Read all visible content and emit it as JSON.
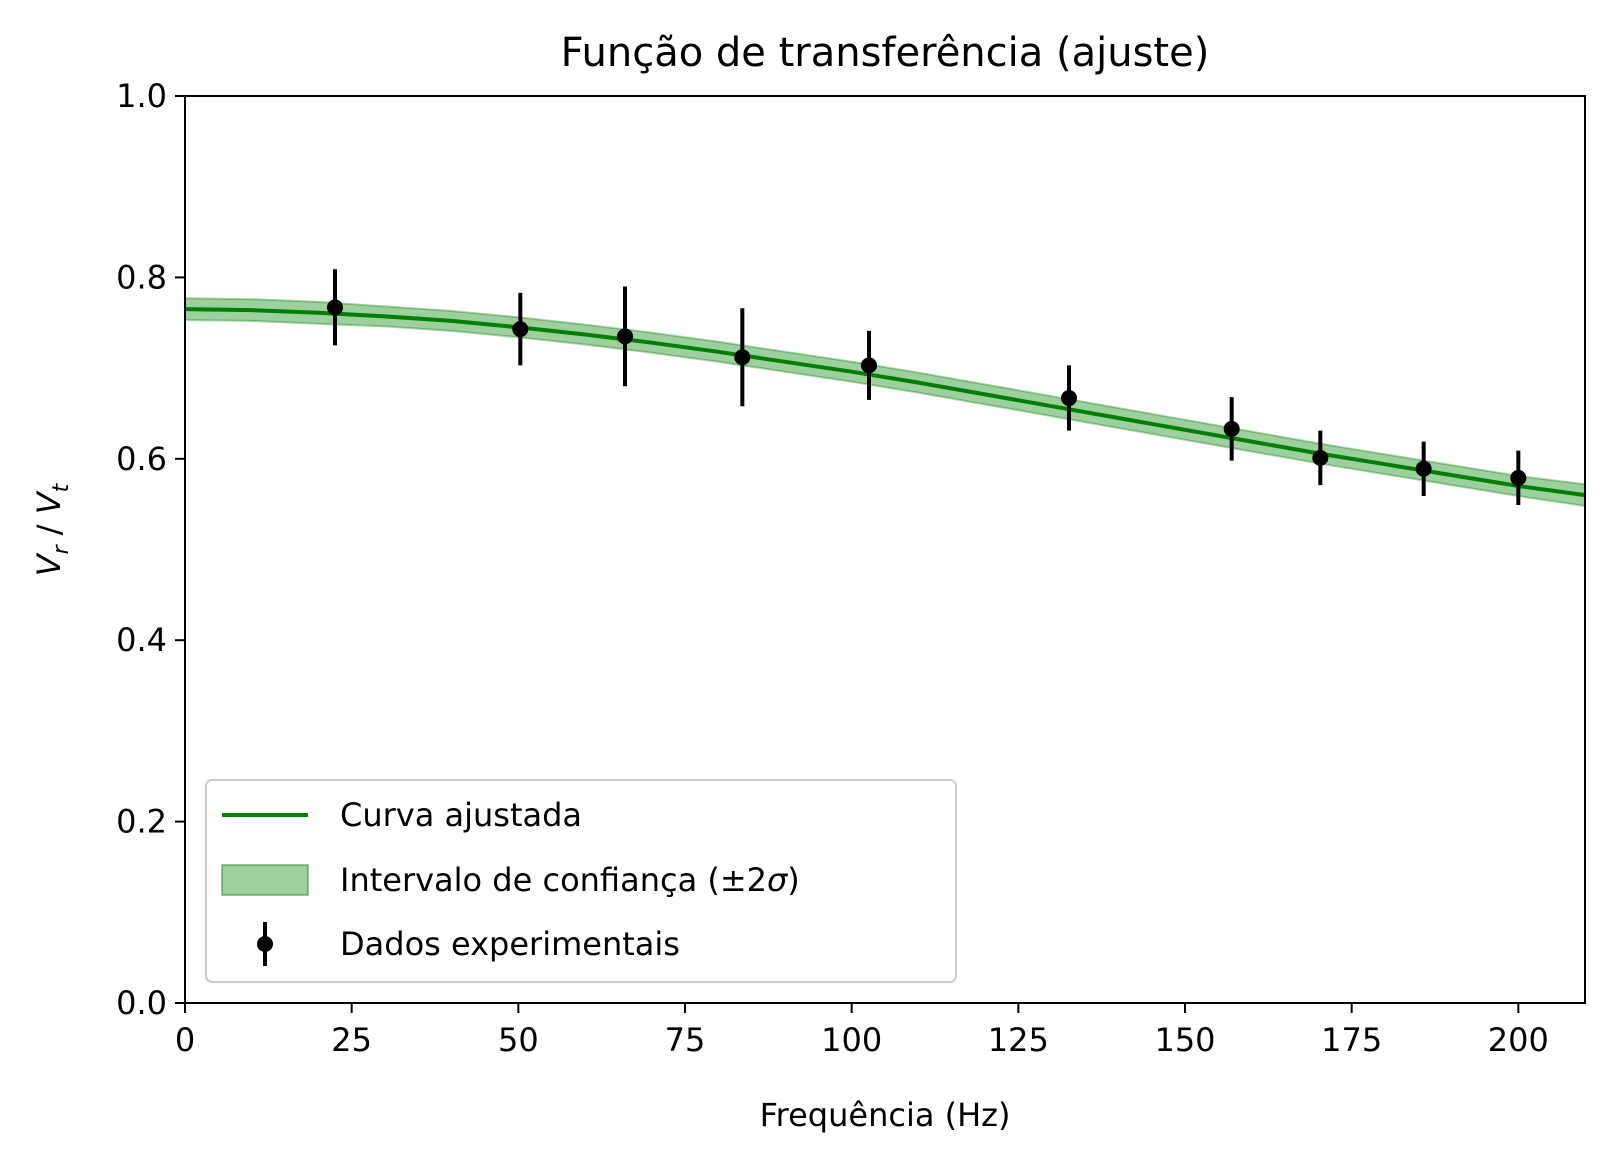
{
  "chart_data": {
    "type": "line",
    "title": "Função de transferência (ajuste)",
    "xlabel": "Frequência (Hz)",
    "ylabel": {
      "base1": "V",
      "sub1": "r",
      "sep": " / ",
      "base2": "V",
      "sub2": "t"
    },
    "xlim": [
      0,
      210
    ],
    "ylim": [
      0.0,
      1.0
    ],
    "x_ticks": [
      0,
      25,
      50,
      75,
      100,
      125,
      150,
      175,
      200
    ],
    "x_tick_labels": [
      "0",
      "25",
      "50",
      "75",
      "100",
      "125",
      "150",
      "175",
      "200"
    ],
    "y_ticks": [
      0.0,
      0.2,
      0.4,
      0.6,
      0.8,
      1.0
    ],
    "y_tick_labels": [
      "0.0",
      "0.2",
      "0.4",
      "0.6",
      "0.8",
      "1.0"
    ],
    "grid": false,
    "legend_position": "lower-left",
    "colors": {
      "fit": "#008000",
      "band": "#008000",
      "data": "#000000"
    },
    "fit_curve": {
      "name": "Curva ajustada",
      "x": [
        0,
        10,
        20,
        30,
        40,
        50,
        60,
        70,
        80,
        90,
        100,
        110,
        120,
        130,
        140,
        150,
        160,
        170,
        180,
        190,
        200,
        210
      ],
      "y": [
        0.765,
        0.764,
        0.761,
        0.757,
        0.752,
        0.745,
        0.737,
        0.728,
        0.718,
        0.707,
        0.696,
        0.684,
        0.671,
        0.658,
        0.645,
        0.632,
        0.619,
        0.606,
        0.594,
        0.582,
        0.57,
        0.56
      ]
    },
    "confidence_band": {
      "name": "Intervalo de confiança (±2σ)",
      "x": [
        0,
        10,
        20,
        30,
        40,
        50,
        60,
        70,
        80,
        90,
        100,
        110,
        120,
        130,
        140,
        150,
        160,
        170,
        180,
        190,
        200,
        210
      ],
      "lower": [
        0.753,
        0.752,
        0.749,
        0.746,
        0.741,
        0.734,
        0.726,
        0.717,
        0.707,
        0.696,
        0.685,
        0.673,
        0.66,
        0.647,
        0.634,
        0.621,
        0.608,
        0.595,
        0.583,
        0.571,
        0.559,
        0.548
      ],
      "upper": [
        0.777,
        0.776,
        0.773,
        0.768,
        0.763,
        0.756,
        0.748,
        0.739,
        0.729,
        0.718,
        0.707,
        0.695,
        0.682,
        0.669,
        0.656,
        0.643,
        0.63,
        0.617,
        0.605,
        0.593,
        0.581,
        0.572
      ]
    },
    "data_series": {
      "name": "Dados experimentais",
      "x": [
        22.5,
        50.3,
        66.0,
        83.6,
        102.6,
        132.6,
        157.0,
        170.3,
        185.8,
        200.0
      ],
      "y": [
        0.767,
        0.743,
        0.735,
        0.712,
        0.703,
        0.667,
        0.633,
        0.601,
        0.589,
        0.579
      ],
      "yerr": [
        0.042,
        0.04,
        0.055,
        0.054,
        0.038,
        0.036,
        0.035,
        0.03,
        0.03,
        0.03
      ]
    },
    "legend": {
      "fit_label": "Curva ajustada",
      "band_label": "Intervalo de confiança (±2",
      "band_sigma": "σ",
      "band_close": ")",
      "data_label": "Dados experimentais"
    }
  }
}
